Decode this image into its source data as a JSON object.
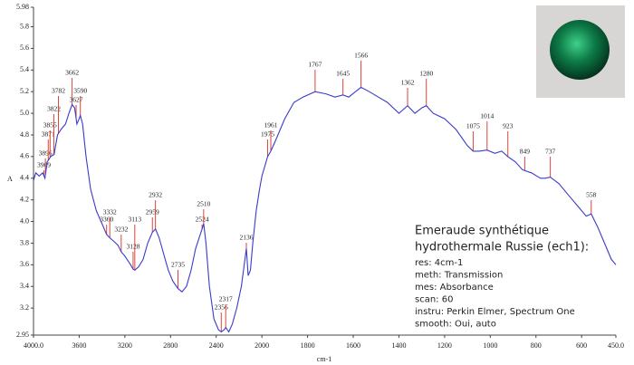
{
  "chart_data": {
    "type": "line",
    "y_label": "A",
    "x_label": "cm-1",
    "color": "#3a3acb",
    "peak_color": "#d9453a",
    "xlim": [
      4000,
      450
    ],
    "xbreak": 2000,
    "ylim": [
      2.95,
      5.98
    ],
    "xticks": [
      {
        "value": 4000,
        "label": "4000.0"
      },
      3600,
      3200,
      2800,
      2400,
      2000,
      1800,
      1600,
      1400,
      1200,
      1000,
      800,
      600,
      {
        "value": 450,
        "label": "450.0"
      }
    ],
    "yticks": [
      2.95,
      3.2,
      3.4,
      3.6,
      3.8,
      {
        "value": 4,
        "label": "4.0"
      },
      4.2,
      4.4,
      4.6,
      4.8,
      {
        "value": 5,
        "label": "5.0"
      },
      5.2,
      5.4,
      5.6,
      5.8,
      5.98
    ],
    "x": [
      4000,
      3980,
      3950,
      3920,
      3900,
      3880,
      3850,
      3820,
      3790,
      3760,
      3720,
      3690,
      3662,
      3640,
      3620,
      3600,
      3590,
      3570,
      3540,
      3500,
      3450,
      3400,
      3360,
      3332,
      3300,
      3260,
      3232,
      3200,
      3150,
      3128,
      3113,
      3080,
      3040,
      3000,
      2959,
      2932,
      2900,
      2860,
      2820,
      2780,
      2735,
      2700,
      2660,
      2620,
      2580,
      2540,
      2524,
      2510,
      2490,
      2460,
      2420,
      2380,
      2356,
      2330,
      2317,
      2290,
      2260,
      2220,
      2180,
      2136,
      2120,
      2100,
      2080,
      2050,
      2020,
      2000,
      1975,
      1961,
      1940,
      1900,
      1860,
      1820,
      1767,
      1720,
      1680,
      1645,
      1620,
      1590,
      1566,
      1530,
      1490,
      1450,
      1400,
      1362,
      1330,
      1300,
      1280,
      1250,
      1200,
      1150,
      1100,
      1075,
      1050,
      1014,
      980,
      950,
      923,
      890,
      860,
      849,
      820,
      780,
      760,
      737,
      700,
      660,
      620,
      580,
      558,
      530,
      500,
      470,
      450
    ],
    "values": [
      4.38,
      4.45,
      4.42,
      4.45,
      4.4,
      4.55,
      4.6,
      4.62,
      4.8,
      4.85,
      4.9,
      5.0,
      5.08,
      5.05,
      4.9,
      4.95,
      4.98,
      4.9,
      4.6,
      4.3,
      4.1,
      3.98,
      3.88,
      3.85,
      3.82,
      3.78,
      3.72,
      3.68,
      3.6,
      3.56,
      3.55,
      3.58,
      3.65,
      3.8,
      3.9,
      3.93,
      3.85,
      3.7,
      3.55,
      3.45,
      3.38,
      3.35,
      3.4,
      3.55,
      3.75,
      3.88,
      3.93,
      3.98,
      3.8,
      3.4,
      3.1,
      3.0,
      2.98,
      3.0,
      3.02,
      2.98,
      3.05,
      3.2,
      3.4,
      3.75,
      3.5,
      3.55,
      3.8,
      4.1,
      4.3,
      4.42,
      4.6,
      4.65,
      4.75,
      4.95,
      5.1,
      5.15,
      5.2,
      5.18,
      5.15,
      5.17,
      5.15,
      5.2,
      5.24,
      5.2,
      5.15,
      5.1,
      5.0,
      5.07,
      5.0,
      5.05,
      5.07,
      5.0,
      4.95,
      4.85,
      4.7,
      4.65,
      4.65,
      4.66,
      4.63,
      4.65,
      4.6,
      4.55,
      4.48,
      4.47,
      4.45,
      4.4,
      4.4,
      4.41,
      4.35,
      4.25,
      4.15,
      4.05,
      4.07,
      3.95,
      3.8,
      3.65,
      3.6
    ],
    "peaks": [
      3909,
      3896,
      3871,
      3855,
      3822,
      3782,
      3662,
      3627,
      3590,
      3360,
      3332,
      3232,
      3128,
      3113,
      2959,
      2932,
      2735,
      2524,
      2510,
      2356,
      2317,
      2136,
      1975,
      1961,
      1767,
      1645,
      1566,
      1362,
      1280,
      1075,
      1014,
      923,
      849,
      737,
      558
    ],
    "info": {
      "title_lines": [
        "Emeraude synthétique",
        "hydrothermale Russie (ech1):"
      ],
      "lines": [
        "res: 4cm-1",
        "meth: Transmission",
        "mes: Absorbance",
        "scan: 60",
        "instru: Perkin Elmer, Spectrum One",
        "smooth: Oui, auto"
      ]
    }
  }
}
